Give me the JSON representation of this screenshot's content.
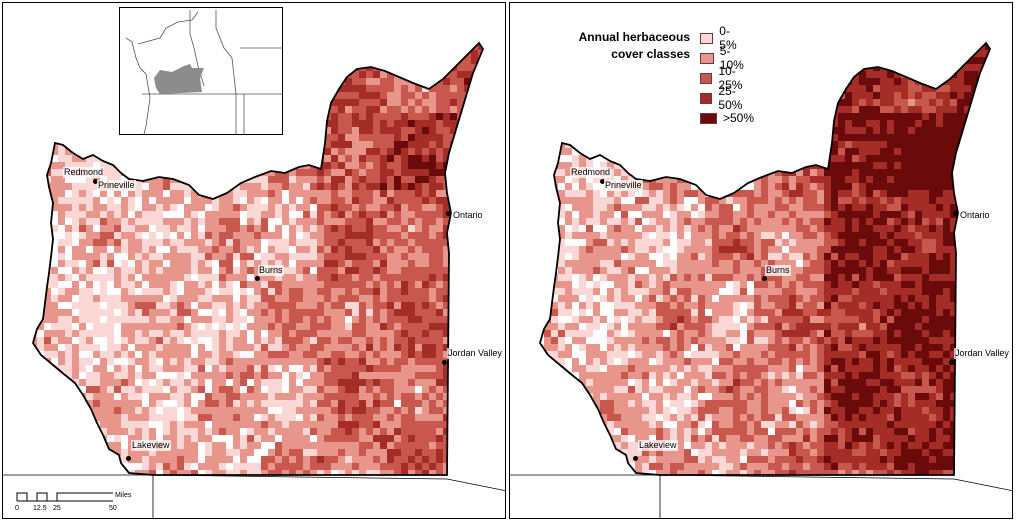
{
  "legend": {
    "title_line1": "Annual herbaceous",
    "title_line2": "cover classes",
    "classes": [
      {
        "label": "0-5%",
        "color": "#fbd7d5"
      },
      {
        "label": "5-10%",
        "color": "#e8958c"
      },
      {
        "label": "10-25%",
        "color": "#c8584e"
      },
      {
        "label": "25-50%",
        "color": "#a52d28"
      },
      {
        "label": ">50%",
        "color": "#6b0a0a"
      }
    ]
  },
  "cities": {
    "redmond": "Redmond",
    "prineville": "Prineville",
    "burns": "Burns",
    "ontario": "Ontario",
    "jordan_valley": "Jordan Valley",
    "lakeview": "Lakeview"
  },
  "scalebar": {
    "ticks": [
      "0",
      "12.5",
      "25",
      "50"
    ],
    "unit": "Miles"
  },
  "inset": {
    "study_area_color": "#8c8c8c"
  },
  "colors": {
    "boundary": "#000000",
    "background": "#ffffff"
  }
}
